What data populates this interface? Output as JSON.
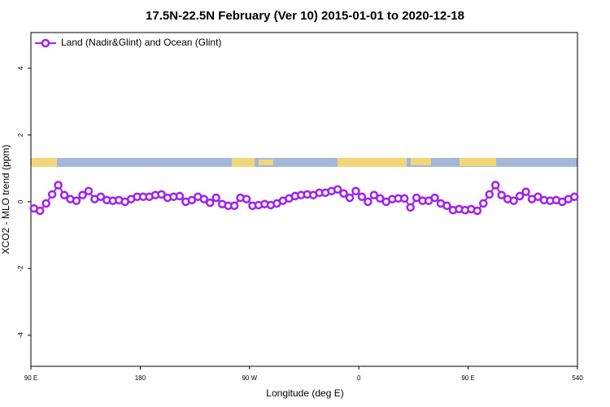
{
  "chart_data": {
    "type": "line",
    "title": "17.5N-22.5N February (Ver 10)   2015-01-01 to 2020-12-18",
    "x_label": "Longitude (deg E)",
    "y_label": "XCO2 - MLO trend (ppm)",
    "x": [
      92.5,
      97.5,
      102.5,
      107.5,
      112.5,
      117.5,
      122.5,
      127.5,
      132.5,
      137.5,
      142.5,
      147.5,
      152.5,
      157.5,
      162.5,
      167.5,
      172.5,
      177.5,
      182.5,
      187.5,
      192.5,
      197.5,
      202.5,
      207.5,
      212.5,
      217.5,
      222.5,
      227.5,
      232.5,
      237.5,
      242.5,
      247.5,
      252.5,
      257.5,
      262.5,
      267.5,
      272.5,
      277.5,
      282.5,
      287.5,
      292.5,
      297.5,
      302.5,
      307.5,
      312.5,
      317.5,
      322.5,
      327.5,
      332.5,
      337.5,
      342.5,
      347.5,
      352.5,
      357.5,
      362.5,
      367.5,
      372.5,
      377.5,
      382.5,
      387.5,
      392.5,
      397.5,
      402.5,
      407.5,
      412.5,
      417.5,
      422.5,
      427.5,
      432.5,
      437.5,
      442.5,
      447.5,
      452.5,
      457.5,
      462.5,
      467.5,
      472.5,
      477.5,
      482.5,
      487.5,
      492.5,
      497.5,
      502.5,
      507.5,
      512.5,
      517.5,
      522.5,
      527.5,
      532.5,
      537.5
    ],
    "series": [
      {
        "name": "Land (Nadir&Glint) and Ocean (Glint)",
        "color": "#a020f0",
        "values": [
          -0.2,
          -0.27,
          -0.05,
          0.22,
          0.5,
          0.2,
          0.08,
          0.03,
          0.2,
          0.32,
          0.08,
          0.15,
          0.05,
          0.03,
          0.05,
          0,
          0.08,
          0.15,
          0.15,
          0.15,
          0.2,
          0.22,
          0.12,
          0.15,
          0.17,
          0,
          0.05,
          0.15,
          0.08,
          -0.03,
          0.12,
          -0.07,
          -0.12,
          -0.12,
          0.12,
          0.08,
          -0.12,
          -0.1,
          -0.07,
          -0.1,
          -0.05,
          0.03,
          0.1,
          0.17,
          0.2,
          0.22,
          0.2,
          0.27,
          0.27,
          0.32,
          0.37,
          0.25,
          0.12,
          0.32,
          0.15,
          0,
          0.2,
          0.1,
          0,
          0.08,
          0.1,
          0.1,
          -0.17,
          0.12,
          0.03,
          0.03,
          0.12,
          -0.05,
          -0.12,
          -0.25,
          -0.22,
          -0.25,
          -0.22,
          -0.27,
          -0.05,
          0.22,
          0.5,
          0.2,
          0.08,
          0.03,
          0.17,
          0.3,
          0.08,
          0.15,
          0.05,
          0.03,
          0.05,
          0,
          0.08,
          0.15
        ]
      }
    ],
    "xlim": [
      90,
      540
    ],
    "xticks": [
      {
        "value": 90,
        "label": "90 E"
      },
      180,
      {
        "value": 270,
        "label": "90 W"
      },
      {
        "value": 360,
        "label": "0"
      },
      {
        "value": 450,
        "label": "90 E"
      },
      540
    ],
    "ylim": [
      -4.93,
      5.07
    ],
    "yticks": [
      -4,
      -2,
      0,
      2,
      4
    ],
    "legend": "top-left"
  }
}
